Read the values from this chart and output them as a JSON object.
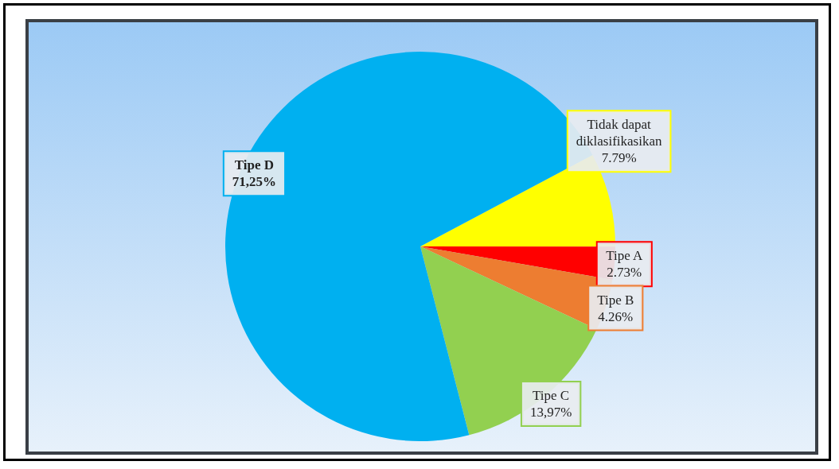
{
  "chart_data": {
    "type": "pie",
    "categories": [
      "Tidak dapat\ndiklasifikasikan",
      "Tipe A",
      "Tipe B",
      "Tipe C",
      "Tipe D"
    ],
    "values": [
      7.79,
      2.73,
      4.26,
      13.97,
      71.25
    ],
    "value_labels": [
      "7.79%",
      "2.73%",
      "4.26%",
      "13,97%",
      "71,25%"
    ],
    "colors": [
      "#ffff00",
      "#ff0000",
      "#ed7d31",
      "#92d050",
      "#00b0f0"
    ],
    "legend": false
  }
}
